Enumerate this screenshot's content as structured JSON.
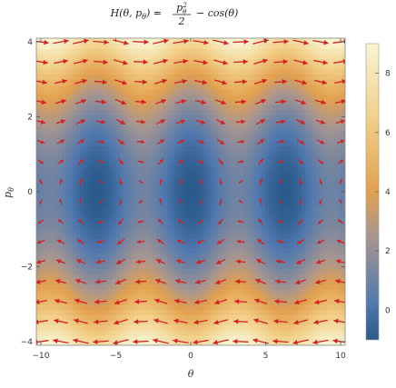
{
  "chart_data": {
    "type": "heatmap",
    "title": "H(θ, pθ) = pθ²/2 − cos(θ)",
    "title_parts": {
      "lhs": "H(θ, p",
      "lhs_sub": "θ",
      "lhs_close": ") =",
      "frac_num": "p",
      "frac_num_sub": "θ",
      "frac_num_sup": "2",
      "frac_den": "2",
      "rhs": "− cos(θ)"
    },
    "xlabel": "θ",
    "ylabel": "p",
    "ylabel_sub": "θ",
    "xlim": [
      -10.3,
      10.3
    ],
    "ylim": [
      -4.1,
      4.1
    ],
    "xticks": [
      -10,
      -5,
      0,
      5,
      10
    ],
    "xtick_labels": [
      "−10",
      "−5",
      "0",
      "5",
      "10"
    ],
    "yticks": [
      -4,
      -2,
      0,
      2,
      4
    ],
    "ytick_labels": [
      "−4",
      "−2",
      "0",
      "2",
      "4"
    ],
    "colorbar": {
      "range": [
        -1,
        9
      ],
      "ticks": [
        0,
        2,
        4,
        6,
        8
      ],
      "tick_labels": [
        "0",
        "2",
        "4",
        "6",
        "8"
      ],
      "colors": [
        "#2a5a8c",
        "#5a82b8",
        "#9a98a8",
        "#e0a050",
        "#f2d28c",
        "#f8f4d0"
      ]
    },
    "arrow_color": "#d42020",
    "grid": false
  }
}
